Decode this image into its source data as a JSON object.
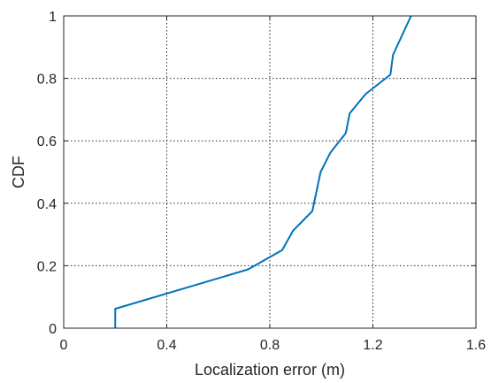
{
  "chart_data": {
    "type": "line",
    "xlabel": "Localization error (m)",
    "ylabel": "CDF",
    "xlim": [
      0,
      1.6
    ],
    "ylim": [
      0,
      1
    ],
    "xticks": [
      "0",
      "0.4",
      "0.8",
      "1.2",
      "1.6"
    ],
    "yticks": [
      "0",
      "0.2",
      "0.4",
      "0.6",
      "0.8",
      "1"
    ],
    "grid": true,
    "series": [
      {
        "color": "#0072BD",
        "x": [
          0.2,
          0.2,
          0.715,
          0.848,
          0.89,
          0.965,
          0.997,
          1.035,
          1.095,
          1.11,
          1.172,
          1.268,
          1.278,
          1.348
        ],
        "y": [
          0.0,
          0.062,
          0.188,
          0.25,
          0.312,
          0.375,
          0.5,
          0.562,
          0.625,
          0.688,
          0.75,
          0.812,
          0.875,
          1.0
        ]
      }
    ]
  }
}
